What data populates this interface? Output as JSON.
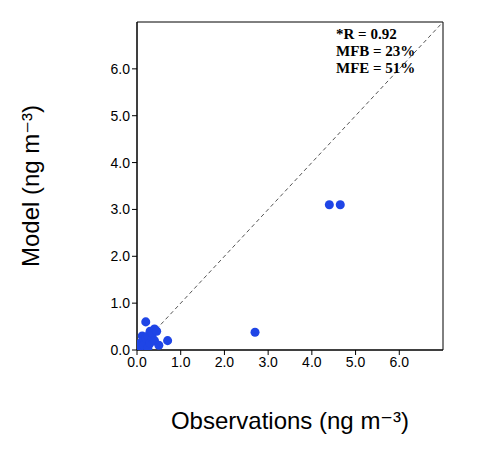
{
  "chart_data": {
    "type": "scatter",
    "x_label": "Observations (ng m⁻³)",
    "y_label": "Model (ng m⁻³)",
    "annotations": [
      "*R = 0.92",
      "MFB = 23%",
      "MFE = 51%"
    ],
    "x": [
      0.05,
      0.08,
      0.1,
      0.12,
      0.15,
      0.15,
      0.2,
      0.2,
      0.25,
      0.25,
      0.3,
      0.3,
      0.35,
      0.35,
      0.4,
      0.4,
      0.45,
      0.5,
      0.7,
      2.7,
      4.4,
      4.65
    ],
    "values": [
      0.05,
      0.15,
      0.1,
      0.3,
      0.2,
      0.1,
      0.6,
      0.25,
      0.3,
      0.05,
      0.4,
      0.15,
      0.25,
      0.35,
      0.45,
      0.2,
      0.4,
      0.1,
      0.2,
      0.38,
      3.1,
      3.1
    ],
    "color": "#1f45e6",
    "marker": "circle",
    "xlim": [
      0,
      7
    ],
    "ylim": [
      0,
      7
    ],
    "xticks": [
      {
        "value": 0,
        "label": "0.0"
      },
      {
        "value": 1,
        "label": "1.0"
      },
      {
        "value": 2,
        "label": "2.0"
      },
      {
        "value": 3,
        "label": "3.0"
      },
      {
        "value": 4,
        "label": "4.0"
      },
      {
        "value": 5,
        "label": "5.0"
      },
      {
        "value": 6,
        "label": "6.0"
      }
    ],
    "yticks": [
      {
        "value": 0,
        "label": "0.0"
      },
      {
        "value": 1,
        "label": "1.0"
      },
      {
        "value": 2,
        "label": "2.0"
      },
      {
        "value": 3,
        "label": "3.0"
      },
      {
        "value": 4,
        "label": "4.0"
      },
      {
        "value": 5,
        "label": "5.0"
      },
      {
        "value": 6,
        "label": "6.0"
      }
    ],
    "reference_line": {
      "x": [
        0,
        7
      ],
      "values": [
        0,
        7
      ],
      "line_style": "dashed",
      "color": "#555555"
    },
    "grid": false
  }
}
